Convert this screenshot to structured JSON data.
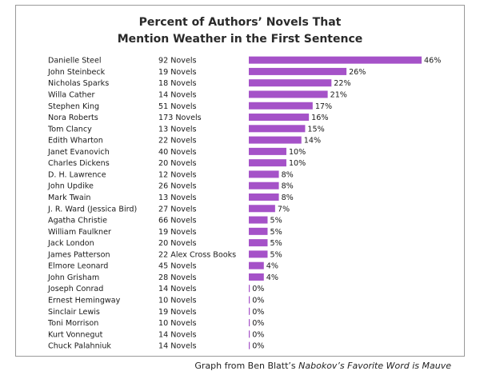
{
  "chart_data": {
    "type": "bar",
    "orientation": "horizontal",
    "title_lines": [
      "Percent of Authors’ Novels That",
      "Mention Weather in the First Sentence"
    ],
    "bar_color": "#a552c8",
    "xlim": [
      0,
      46
    ],
    "unit_suffix": "%",
    "categories": [
      "Danielle Steel",
      "John Steinbeck",
      "Nicholas Sparks",
      "Willa Cather",
      "Stephen King",
      "Nora Roberts",
      "Tom Clancy",
      "Edith Wharton",
      "Janet Evanovich",
      "Charles Dickens",
      "D. H. Lawrence",
      "John Updike",
      "Mark Twain",
      "J. R. Ward (Jessica Bird)",
      "Agatha Christie",
      "William Faulkner",
      "Jack London",
      "James Patterson",
      "Elmore Leonard",
      "John Grisham",
      "Joseph Conrad",
      "Ernest Hemingway",
      "Sinclair Lewis",
      "Toni Morrison",
      "Kurt Vonnegut",
      "Chuck Palahniuk"
    ],
    "novel_counts": [
      "92 Novels",
      "19 Novels",
      "18 Novels",
      "14 Novels",
      "51 Novels",
      "173 Novels",
      "13 Novels",
      "22 Novels",
      "40 Novels",
      "20 Novels",
      "12 Novels",
      "26 Novels",
      "13 Novels",
      "27 Novels",
      "66 Novels",
      "19 Novels",
      "20 Novels",
      "22 Alex Cross Books",
      "45 Novels",
      "28 Novels",
      "14 Novels",
      "10 Novels",
      "19 Novels",
      "10 Novels",
      "14 Novels",
      "14 Novels"
    ],
    "values": [
      46,
      26,
      22,
      21,
      17,
      16,
      15,
      14,
      10,
      10,
      8,
      8,
      8,
      7,
      5,
      5,
      5,
      5,
      4,
      4,
      0,
      0,
      0,
      0,
      0,
      0
    ]
  },
  "caption": {
    "prefix": "Graph from Ben Blatt’s ",
    "book": "Nabokov’s Favorite Word is Mauve"
  }
}
